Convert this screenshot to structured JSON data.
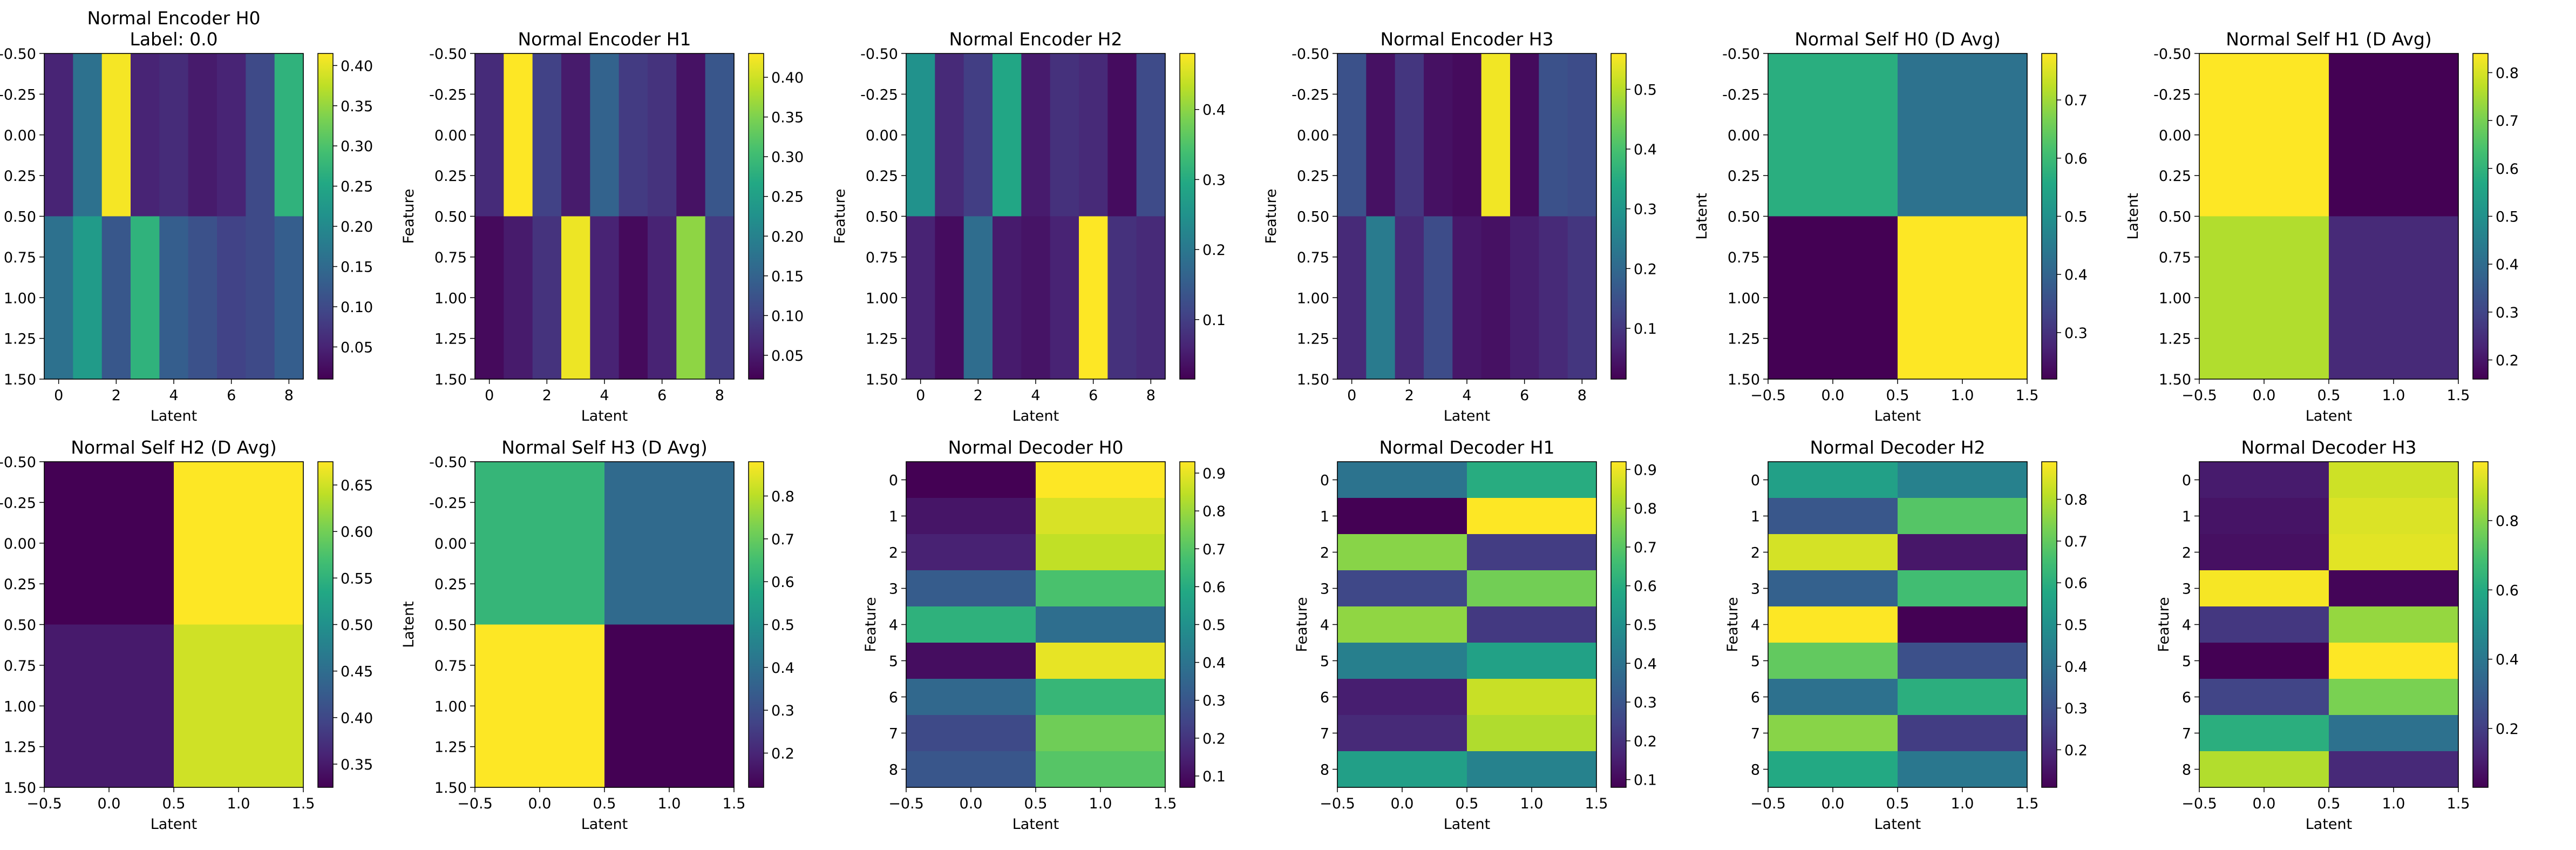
{
  "chart_data": [
    {
      "type": "heatmap",
      "title": "Normal Encoder H0",
      "subtitle": "Label: 0.0",
      "xlabel": "Latent",
      "ylabel": "Feature",
      "x_ticks": [
        "0",
        "2",
        "4",
        "6",
        "8"
      ],
      "y_ticks": [
        "-0.50",
        "-0.25",
        "0.00",
        "0.25",
        "0.50",
        "0.75",
        "1.00",
        "1.25",
        "1.50"
      ],
      "cbar_ticks": [
        "0.05",
        "0.10",
        "0.15",
        "0.20",
        "0.25",
        "0.30",
        "0.35",
        "0.40"
      ],
      "cbar_range": [
        0.01,
        0.415
      ],
      "x_range": [
        -0.5,
        8.5
      ],
      "y_range": [
        -0.5,
        1.5
      ],
      "rows": 2,
      "cols": 9,
      "values": [
        [
          0.05,
          0.16,
          0.41,
          0.05,
          0.06,
          0.04,
          0.05,
          0.1,
          0.27
        ],
        [
          0.16,
          0.23,
          0.12,
          0.27,
          0.13,
          0.11,
          0.09,
          0.1,
          0.13
        ]
      ]
    },
    {
      "type": "heatmap",
      "title": "Normal Encoder H1",
      "xlabel": "Latent",
      "ylabel": "Feature",
      "x_ticks": [
        "0",
        "2",
        "4",
        "6",
        "8"
      ],
      "y_ticks": [
        "-0.50",
        "-0.25",
        "0.00",
        "0.25",
        "0.50",
        "0.75",
        "1.00",
        "1.25",
        "1.50"
      ],
      "cbar_ticks": [
        "0.05",
        "0.10",
        "0.15",
        "0.20",
        "0.25",
        "0.30",
        "0.35",
        "0.40"
      ],
      "cbar_range": [
        0.02,
        0.43
      ],
      "x_range": [
        -0.5,
        8.5
      ],
      "y_range": [
        -0.5,
        1.5
      ],
      "rows": 2,
      "cols": 9,
      "values": [
        [
          0.07,
          0.43,
          0.1,
          0.05,
          0.15,
          0.09,
          0.08,
          0.04,
          0.13
        ],
        [
          0.03,
          0.05,
          0.08,
          0.42,
          0.06,
          0.03,
          0.06,
          0.36,
          0.09
        ]
      ]
    },
    {
      "type": "heatmap",
      "title": "Normal Encoder H2",
      "xlabel": "Latent",
      "ylabel": "Feature",
      "x_ticks": [
        "0",
        "2",
        "4",
        "6",
        "8"
      ],
      "y_ticks": [
        "-0.50",
        "-0.25",
        "0.00",
        "0.25",
        "0.50",
        "0.75",
        "1.00",
        "1.25",
        "1.50"
      ],
      "cbar_ticks": [
        "0.1",
        "0.2",
        "0.3",
        "0.4"
      ],
      "cbar_range": [
        0.015,
        0.48
      ],
      "x_range": [
        -0.5,
        8.5
      ],
      "y_range": [
        -0.5,
        1.5
      ],
      "rows": 2,
      "cols": 9,
      "values": [
        [
          0.25,
          0.07,
          0.1,
          0.29,
          0.05,
          0.08,
          0.07,
          0.03,
          0.12
        ],
        [
          0.06,
          0.03,
          0.18,
          0.05,
          0.04,
          0.06,
          0.48,
          0.08,
          0.07
        ]
      ]
    },
    {
      "type": "heatmap",
      "title": "Normal Encoder H3",
      "xlabel": "Latent",
      "ylabel": "Feature",
      "x_ticks": [
        "0",
        "2",
        "4",
        "6",
        "8"
      ],
      "y_ticks": [
        "-0.50",
        "-0.25",
        "0.00",
        "0.25",
        "0.50",
        "0.75",
        "1.00",
        "1.25",
        "1.50"
      ],
      "cbar_ticks": [
        "0.1",
        "0.2",
        "0.3",
        "0.4",
        "0.5"
      ],
      "cbar_range": [
        0.015,
        0.56
      ],
      "x_range": [
        -0.5,
        8.5
      ],
      "y_range": [
        -0.5,
        1.5
      ],
      "rows": 2,
      "cols": 9,
      "values": [
        [
          0.15,
          0.04,
          0.1,
          0.04,
          0.03,
          0.55,
          0.03,
          0.15,
          0.14
        ],
        [
          0.08,
          0.24,
          0.08,
          0.14,
          0.05,
          0.04,
          0.06,
          0.08,
          0.1
        ]
      ]
    },
    {
      "type": "heatmap",
      "title": "Normal Self H0 (D Avg)",
      "xlabel": "Latent",
      "ylabel": "Latent",
      "x_ticks": [
        "−0.5",
        "0.0",
        "0.5",
        "1.0",
        "1.5"
      ],
      "y_ticks": [
        "-0.50",
        "-0.25",
        "0.00",
        "0.25",
        "0.50",
        "0.75",
        "1.00",
        "1.25",
        "1.50"
      ],
      "cbar_ticks": [
        "0.3",
        "0.4",
        "0.5",
        "0.6",
        "0.7"
      ],
      "cbar_range": [
        0.22,
        0.78
      ],
      "x_range": [
        -0.5,
        1.5
      ],
      "y_range": [
        -0.5,
        1.5
      ],
      "rows": 2,
      "cols": 2,
      "values": [
        [
          0.57,
          0.43
        ],
        [
          0.22,
          0.78
        ]
      ]
    },
    {
      "type": "heatmap",
      "title": "Normal Self H1 (D Avg)",
      "xlabel": "Latent",
      "ylabel": "Latent",
      "x_ticks": [
        "−0.5",
        "0.0",
        "0.5",
        "1.0",
        "1.5"
      ],
      "y_ticks": [
        "-0.50",
        "-0.25",
        "0.00",
        "0.25",
        "0.50",
        "0.75",
        "1.00",
        "1.25",
        "1.50"
      ],
      "cbar_ticks": [
        "0.2",
        "0.3",
        "0.4",
        "0.5",
        "0.6",
        "0.7",
        "0.8"
      ],
      "cbar_range": [
        0.16,
        0.84
      ],
      "x_range": [
        -0.5,
        1.5
      ],
      "y_range": [
        -0.5,
        1.5
      ],
      "rows": 2,
      "cols": 2,
      "values": [
        [
          0.84,
          0.16
        ],
        [
          0.76,
          0.24
        ]
      ]
    },
    {
      "type": "heatmap",
      "title": "Normal Self H2 (D Avg)",
      "xlabel": "Latent",
      "ylabel": "Latent",
      "x_ticks": [
        "−0.5",
        "0.0",
        "0.5",
        "1.0",
        "1.5"
      ],
      "y_ticks": [
        "-0.50",
        "-0.25",
        "0.00",
        "0.25",
        "0.50",
        "0.75",
        "1.00",
        "1.25",
        "1.50"
      ],
      "cbar_ticks": [
        "0.35",
        "0.40",
        "0.45",
        "0.50",
        "0.55",
        "0.60",
        "0.65"
      ],
      "cbar_range": [
        0.325,
        0.675
      ],
      "x_range": [
        -0.5,
        1.5
      ],
      "y_range": [
        -0.5,
        1.5
      ],
      "rows": 2,
      "cols": 2,
      "values": [
        [
          0.325,
          0.675
        ],
        [
          0.35,
          0.65
        ]
      ]
    },
    {
      "type": "heatmap",
      "title": "Normal Self H3 (D Avg)",
      "xlabel": "Latent",
      "ylabel": "Latent",
      "x_ticks": [
        "−0.5",
        "0.0",
        "0.5",
        "1.0",
        "1.5"
      ],
      "y_ticks": [
        "-0.50",
        "-0.25",
        "0.00",
        "0.25",
        "0.50",
        "0.75",
        "1.00",
        "1.25",
        "1.50"
      ],
      "cbar_ticks": [
        "0.2",
        "0.3",
        "0.4",
        "0.5",
        "0.6",
        "0.7",
        "0.8"
      ],
      "cbar_range": [
        0.12,
        0.88
      ],
      "x_range": [
        -0.5,
        1.5
      ],
      "y_range": [
        -0.5,
        1.5
      ],
      "rows": 2,
      "cols": 2,
      "values": [
        [
          0.62,
          0.38
        ],
        [
          0.88,
          0.12
        ]
      ]
    },
    {
      "type": "heatmap",
      "title": "Normal Decoder H0",
      "xlabel": "Latent",
      "ylabel": "Feature",
      "x_ticks": [
        "−0.5",
        "0.0",
        "0.5",
        "1.0",
        "1.5"
      ],
      "y_ticks": [
        "0",
        "1",
        "2",
        "3",
        "4",
        "5",
        "6",
        "7",
        "8"
      ],
      "cbar_ticks": [
        "0.1",
        "0.2",
        "0.3",
        "0.4",
        "0.5",
        "0.6",
        "0.7",
        "0.8",
        "0.9"
      ],
      "cbar_range": [
        0.07,
        0.93
      ],
      "x_range": [
        -0.5,
        1.5
      ],
      "y_range": [
        -0.5,
        8.5
      ],
      "rows": 9,
      "cols": 2,
      "values": [
        [
          0.07,
          0.93
        ],
        [
          0.12,
          0.88
        ],
        [
          0.15,
          0.85
        ],
        [
          0.32,
          0.68
        ],
        [
          0.62,
          0.38
        ],
        [
          0.1,
          0.9
        ],
        [
          0.36,
          0.64
        ],
        [
          0.26,
          0.74
        ],
        [
          0.3,
          0.7
        ]
      ]
    },
    {
      "type": "heatmap",
      "title": "Normal Decoder H1",
      "xlabel": "Latent",
      "ylabel": "Feature",
      "x_ticks": [
        "−0.5",
        "0.0",
        "0.5",
        "1.0",
        "1.5"
      ],
      "y_ticks": [
        "0",
        "1",
        "2",
        "3",
        "4",
        "5",
        "6",
        "7",
        "8"
      ],
      "cbar_ticks": [
        "0.1",
        "0.2",
        "0.3",
        "0.4",
        "0.5",
        "0.6",
        "0.7",
        "0.8",
        "0.9"
      ],
      "cbar_range": [
        0.08,
        0.92
      ],
      "x_range": [
        -0.5,
        1.5
      ],
      "y_range": [
        -0.5,
        8.5
      ],
      "rows": 9,
      "cols": 2,
      "values": [
        [
          0.4,
          0.6
        ],
        [
          0.08,
          0.92
        ],
        [
          0.77,
          0.23
        ],
        [
          0.26,
          0.74
        ],
        [
          0.78,
          0.22
        ],
        [
          0.44,
          0.56
        ],
        [
          0.15,
          0.85
        ],
        [
          0.18,
          0.82
        ],
        [
          0.55,
          0.45
        ]
      ]
    },
    {
      "type": "heatmap",
      "title": "Normal Decoder H2",
      "xlabel": "Latent",
      "ylabel": "Feature",
      "x_ticks": [
        "−0.5",
        "0.0",
        "0.5",
        "1.0",
        "1.5"
      ],
      "y_ticks": [
        "0",
        "1",
        "2",
        "3",
        "4",
        "5",
        "6",
        "7",
        "8"
      ],
      "cbar_ticks": [
        "0.2",
        "0.3",
        "0.4",
        "0.5",
        "0.6",
        "0.7",
        "0.8"
      ],
      "cbar_range": [
        0.11,
        0.89
      ],
      "x_range": [
        -0.5,
        1.5
      ],
      "y_range": [
        -0.5,
        1.5
      ],
      "rows": 9,
      "cols": 2,
      "values": [
        [
          0.55,
          0.45
        ],
        [
          0.32,
          0.68
        ],
        [
          0.84,
          0.16
        ],
        [
          0.35,
          0.65
        ],
        [
          0.89,
          0.11
        ],
        [
          0.7,
          0.3
        ],
        [
          0.4,
          0.6
        ],
        [
          0.75,
          0.25
        ],
        [
          0.58,
          0.42
        ]
      ]
    },
    {
      "type": "heatmap",
      "title": "Normal Decoder H3",
      "xlabel": "Latent",
      "ylabel": "Feature",
      "x_ticks": [
        "−0.5",
        "0.0",
        "0.5",
        "1.0",
        "1.5"
      ],
      "y_ticks": [
        "0",
        "1",
        "2",
        "3",
        "4",
        "5",
        "6",
        "7",
        "8"
      ],
      "cbar_ticks": [
        "0.2",
        "0.4",
        "0.6",
        "0.8"
      ],
      "cbar_range": [
        0.03,
        0.97
      ],
      "x_range": [
        -0.5,
        1.5
      ],
      "y_range": [
        -0.5,
        8.5
      ],
      "rows": 9,
      "cols": 2,
      "values": [
        [
          0.1,
          0.9
        ],
        [
          0.08,
          0.92
        ],
        [
          0.07,
          0.93
        ],
        [
          0.96,
          0.04
        ],
        [
          0.18,
          0.82
        ],
        [
          0.03,
          0.97
        ],
        [
          0.22,
          0.78
        ],
        [
          0.62,
          0.38
        ],
        [
          0.86,
          0.14
        ]
      ]
    }
  ]
}
